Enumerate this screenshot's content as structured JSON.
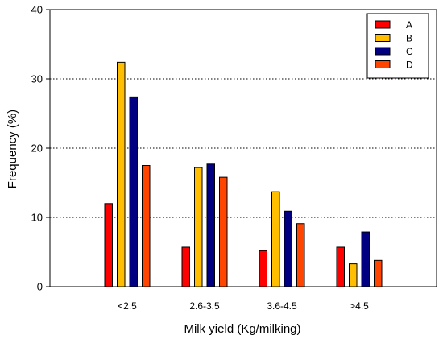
{
  "chart_data": {
    "type": "bar",
    "title": "",
    "xlabel": "Milk yield (Kg/milking)",
    "ylabel": "Frequency (%)",
    "ylim": [
      0,
      40
    ],
    "yticks": [
      0,
      10,
      20,
      30,
      40
    ],
    "grid": "horizontal dotted at 10, 20, 30",
    "legend_position": "top-right",
    "categories": [
      "<2.5",
      "2.6-3.5",
      "3.6-4.5",
      ">4.5"
    ],
    "series": [
      {
        "name": "A",
        "color": "#ff0000",
        "values": [
          12.0,
          5.7,
          5.2,
          5.7
        ]
      },
      {
        "name": "B",
        "color": "#ffbf00",
        "values": [
          32.4,
          17.2,
          13.7,
          3.3
        ]
      },
      {
        "name": "C",
        "color": "#000080",
        "values": [
          27.4,
          17.7,
          10.9,
          7.9
        ]
      },
      {
        "name": "D",
        "color": "#ff4500",
        "values": [
          17.5,
          15.8,
          9.1,
          3.8
        ]
      }
    ]
  }
}
